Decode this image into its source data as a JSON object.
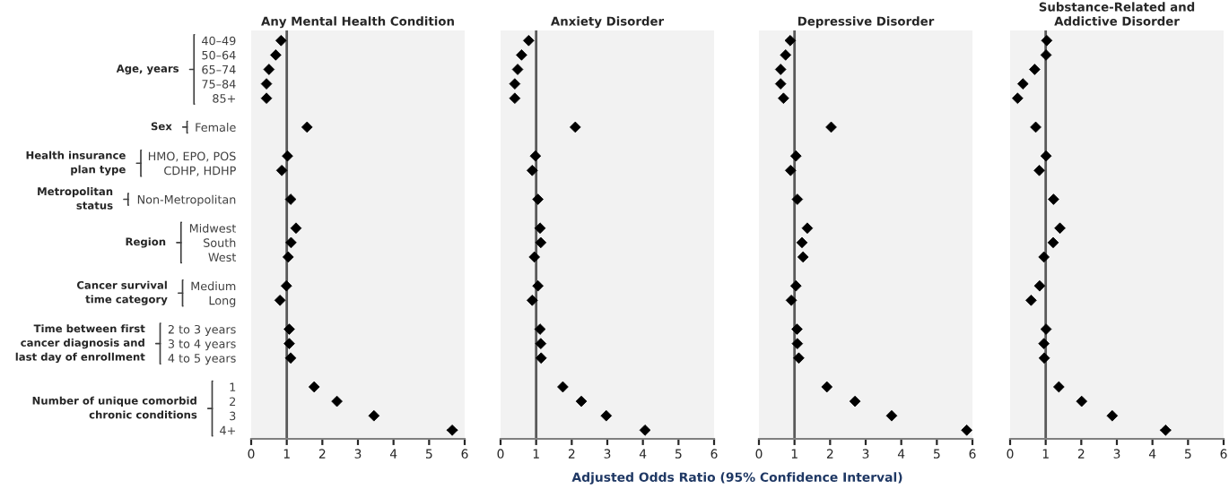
{
  "chart_data": [
    {
      "type": "scatter",
      "orientation": "horizontal",
      "title": "Any Mental Health Condition",
      "categories": [
        "40–49",
        "50–64",
        "65–74",
        "75–84",
        "85+",
        null,
        "Female",
        null,
        "HMO, EPO, POS",
        "CDHP, HDHP",
        null,
        "Non-Metropolitan",
        null,
        "Midwest",
        "South",
        "West",
        null,
        "Medium",
        "Long",
        null,
        "2 to 3 years",
        "3 to 4 years",
        "4 to 5 years",
        null,
        "1",
        "2",
        "3",
        "4+"
      ],
      "annotations": [
        "Age, years",
        "Sex",
        "Health insurance\nplan type",
        "Metropolitan\nstatus",
        "Region",
        "Cancer survival\ntime category",
        "Time between first\ncancer diagnosis and\nlast day of enrollment",
        "Number of unique comorbid\nchronic conditions"
      ],
      "series": [
        {
          "color": "#000000",
          "values": [
            0.84,
            0.69,
            0.5,
            0.43,
            0.43,
            null,
            1.57,
            null,
            1.02,
            0.86,
            null,
            1.11,
            null,
            1.26,
            1.12,
            1.04,
            null,
            0.99,
            0.81,
            null,
            1.07,
            1.07,
            1.11,
            null,
            1.77,
            2.41,
            3.45,
            5.65
          ],
          "errors": [
            null,
            null,
            null,
            null,
            null,
            null,
            null,
            null,
            null,
            null,
            null,
            null,
            null,
            null,
            null,
            null,
            null,
            null,
            null,
            null,
            null,
            null,
            null,
            null,
            null,
            null,
            null,
            0.15
          ]
        }
      ],
      "ref_lines": [
        {
          "axis": "x",
          "value": 1,
          "color": "#595959"
        }
      ],
      "xlim": [
        0,
        6
      ],
      "xticks": [
        0,
        1,
        2,
        3,
        4,
        5,
        6
      ],
      "marker": "diamond"
    },
    {
      "type": "scatter",
      "orientation": "horizontal",
      "title": "Anxiety Disorder",
      "xlabel": "Adjusted Odds Ratio (95% Confidence Interval)",
      "tick_labels": "x",
      "series": [
        {
          "color": "#000000",
          "values": [
            0.79,
            0.59,
            0.48,
            0.4,
            0.4,
            null,
            2.1,
            null,
            0.98,
            0.89,
            null,
            1.05,
            null,
            1.11,
            1.13,
            0.95,
            null,
            1.05,
            0.89,
            null,
            1.11,
            1.13,
            1.14,
            null,
            1.75,
            2.27,
            2.97,
            4.06
          ],
          "errors": [
            null,
            null,
            null,
            null,
            null,
            null,
            null,
            null,
            null,
            null,
            null,
            null,
            null,
            null,
            null,
            null,
            null,
            null,
            null,
            null,
            null,
            null,
            null,
            null,
            null,
            null,
            null,
            0.12
          ]
        }
      ],
      "ref_lines": [
        {
          "axis": "x",
          "value": 1,
          "color": "#595959"
        }
      ],
      "xlim": [
        0,
        6
      ],
      "xticks": [
        0,
        1,
        2,
        3,
        4,
        5,
        6
      ],
      "marker": "diamond"
    },
    {
      "type": "scatter",
      "orientation": "horizontal",
      "title": "Depressive Disorder",
      "tick_labels": "x",
      "series": [
        {
          "color": "#000000",
          "values": [
            0.88,
            0.75,
            0.61,
            0.61,
            0.69,
            null,
            2.03,
            null,
            1.04,
            0.89,
            null,
            1.08,
            null,
            1.36,
            1.21,
            1.24,
            null,
            1.04,
            0.91,
            null,
            1.07,
            1.08,
            1.12,
            null,
            1.91,
            2.7,
            3.73,
            5.84
          ],
          "errors": [
            null,
            null,
            null,
            null,
            null,
            null,
            null,
            null,
            null,
            null,
            null,
            null,
            null,
            null,
            null,
            null,
            null,
            null,
            null,
            null,
            null,
            null,
            null,
            null,
            null,
            null,
            null,
            0.12
          ]
        }
      ],
      "ref_lines": [
        {
          "axis": "x",
          "value": 1,
          "color": "#595959"
        }
      ],
      "xlim": [
        0,
        6
      ],
      "xticks": [
        0,
        1,
        2,
        3,
        4,
        5,
        6
      ],
      "marker": "diamond"
    },
    {
      "type": "scatter",
      "orientation": "horizontal",
      "title": "Substance-Related and\nAddictive Disorder",
      "tick_labels": "x",
      "series": [
        {
          "color": "#000000",
          "values": [
            1.03,
            1.01,
            0.69,
            0.36,
            0.21,
            null,
            0.72,
            null,
            1.01,
            0.82,
            null,
            1.22,
            null,
            1.4,
            1.21,
            0.95,
            null,
            0.83,
            0.59,
            null,
            1.01,
            0.95,
            0.96,
            null,
            1.37,
            2.01,
            2.87,
            4.37
          ],
          "errors": [
            null,
            null,
            null,
            null,
            null,
            null,
            null,
            null,
            null,
            null,
            null,
            null,
            null,
            null,
            null,
            null,
            null,
            null,
            null,
            null,
            null,
            null,
            null,
            null,
            null,
            null,
            null,
            0.15
          ]
        }
      ],
      "ref_lines": [
        {
          "axis": "x",
          "value": 1,
          "color": "#595959"
        }
      ],
      "xlim": [
        0,
        6
      ],
      "xticks": [
        0,
        1,
        2,
        3,
        4,
        5,
        6
      ],
      "marker": "diamond"
    }
  ]
}
